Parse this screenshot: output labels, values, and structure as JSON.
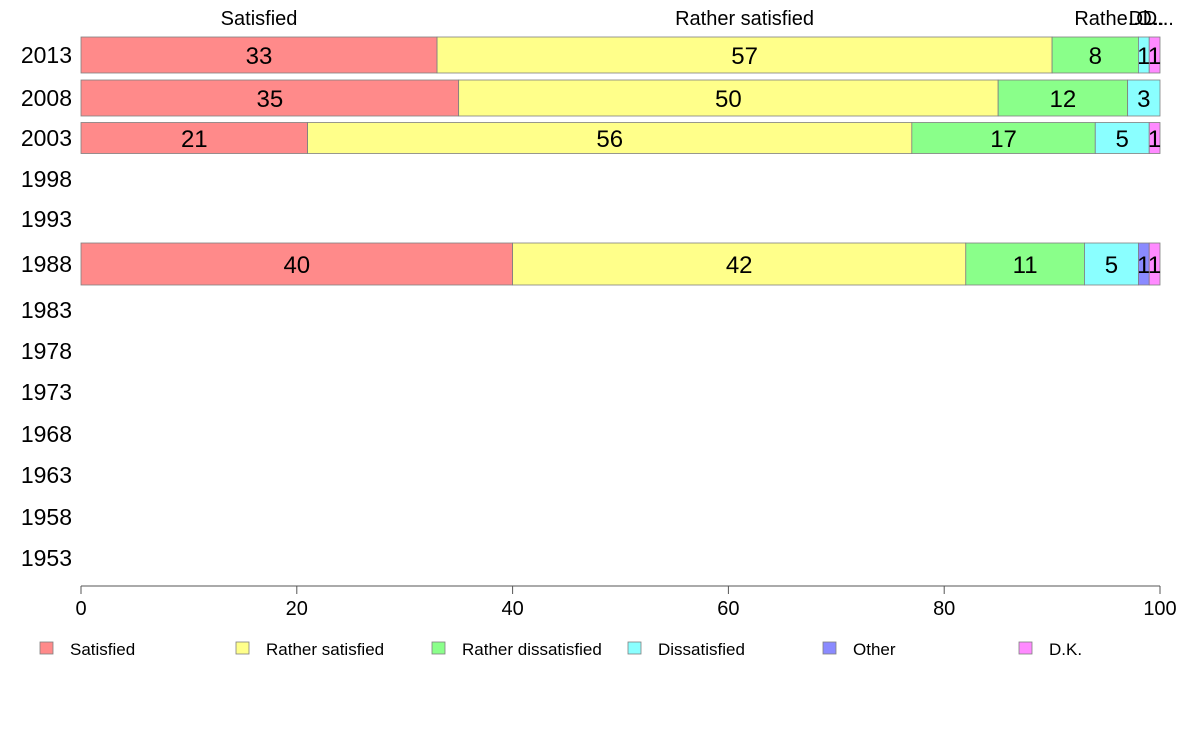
{
  "chart_data": {
    "type": "bar",
    "orientation": "horizontal",
    "stacked": true,
    "categories": [
      "2013",
      "2008",
      "2003",
      "1998",
      "1993",
      "1988",
      "1983",
      "1978",
      "1973",
      "1968",
      "1963",
      "1958",
      "1953"
    ],
    "series": [
      {
        "name": "Satisfied",
        "color": "#ff8a8a",
        "values": [
          33,
          35,
          21,
          null,
          null,
          40,
          null,
          null,
          null,
          null,
          null,
          null,
          null
        ]
      },
      {
        "name": "Rather satisfied",
        "color": "#ffff8a",
        "values": [
          57,
          50,
          56,
          null,
          null,
          42,
          null,
          null,
          null,
          null,
          null,
          null,
          null
        ]
      },
      {
        "name": "Rather dissatisfied",
        "color": "#8aff8a",
        "values": [
          8,
          12,
          17,
          null,
          null,
          11,
          null,
          null,
          null,
          null,
          null,
          null,
          null
        ]
      },
      {
        "name": "Dissatisfied",
        "color": "#8affff",
        "values": [
          1,
          3,
          5,
          null,
          null,
          5,
          null,
          null,
          null,
          null,
          null,
          null,
          null
        ]
      },
      {
        "name": "Other",
        "color": "#8a8aff",
        "values": [
          0,
          0,
          0,
          null,
          null,
          1,
          null,
          null,
          null,
          null,
          null,
          null,
          null
        ]
      },
      {
        "name": "D.K.",
        "color": "#ff8aff",
        "values": [
          1,
          0,
          1,
          null,
          null,
          1,
          null,
          null,
          null,
          null,
          null,
          null,
          null
        ]
      }
    ],
    "top_labels": [
      "Satisfied",
      "Rather satisfied",
      "Rathe...",
      "Di...",
      "O...",
      "D..."
    ],
    "xlim": [
      0,
      100
    ],
    "xticks": [
      "0",
      "20",
      "40",
      "60",
      "80",
      "100"
    ],
    "grid": false,
    "legend_position": "bottom"
  }
}
